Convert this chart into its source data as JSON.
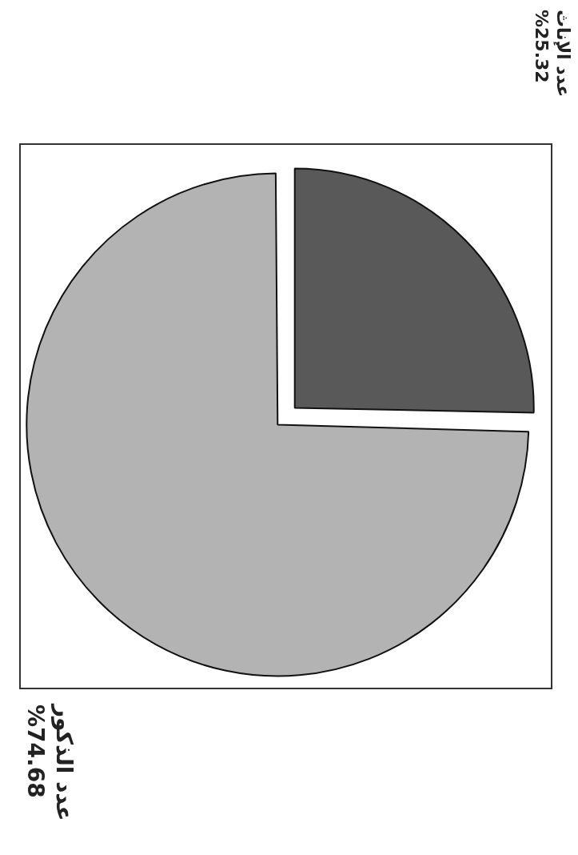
{
  "chart_data": {
    "type": "pie",
    "categories": [
      "عدد الإناث",
      "عدد الذكور"
    ],
    "values": [
      25.32,
      74.68
    ],
    "colors": [
      "#595959",
      "#b3b3b3"
    ],
    "value_labels": [
      "%25.32",
      "%74.68"
    ],
    "legend": false
  }
}
